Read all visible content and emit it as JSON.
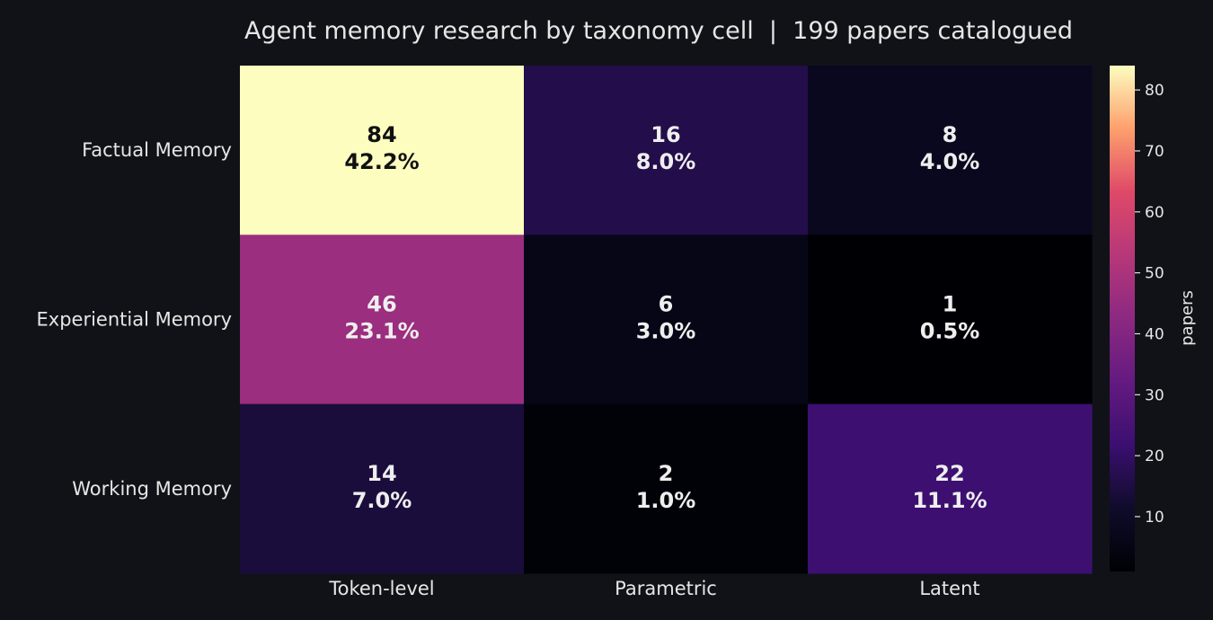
{
  "chart_data": {
    "type": "heatmap",
    "title": "Agent memory research by taxonomy cell  |  199 papers catalogued",
    "rows": [
      "Factual Memory",
      "Experiential Memory",
      "Working Memory"
    ],
    "columns": [
      "Token-level",
      "Parametric",
      "Latent"
    ],
    "values": [
      [
        84,
        16,
        8
      ],
      [
        46,
        6,
        1
      ],
      [
        14,
        2,
        22
      ]
    ],
    "percent_labels": [
      [
        "42.2%",
        "8.0%",
        "4.0%"
      ],
      [
        "23.1%",
        "3.0%",
        "0.5%"
      ],
      [
        "7.0%",
        "1.0%",
        "11.1%"
      ]
    ],
    "colormap": "magma",
    "colorbar": {
      "label": "papers",
      "vmin": 1,
      "vmax": 84,
      "ticks": [
        10,
        20,
        30,
        40,
        50,
        60,
        70,
        80
      ]
    },
    "grid": false
  },
  "colors": {
    "background": "#111218",
    "text": "#e6e6e6",
    "annotation_light": "#eeeeee",
    "annotation_dark": "#111111"
  }
}
